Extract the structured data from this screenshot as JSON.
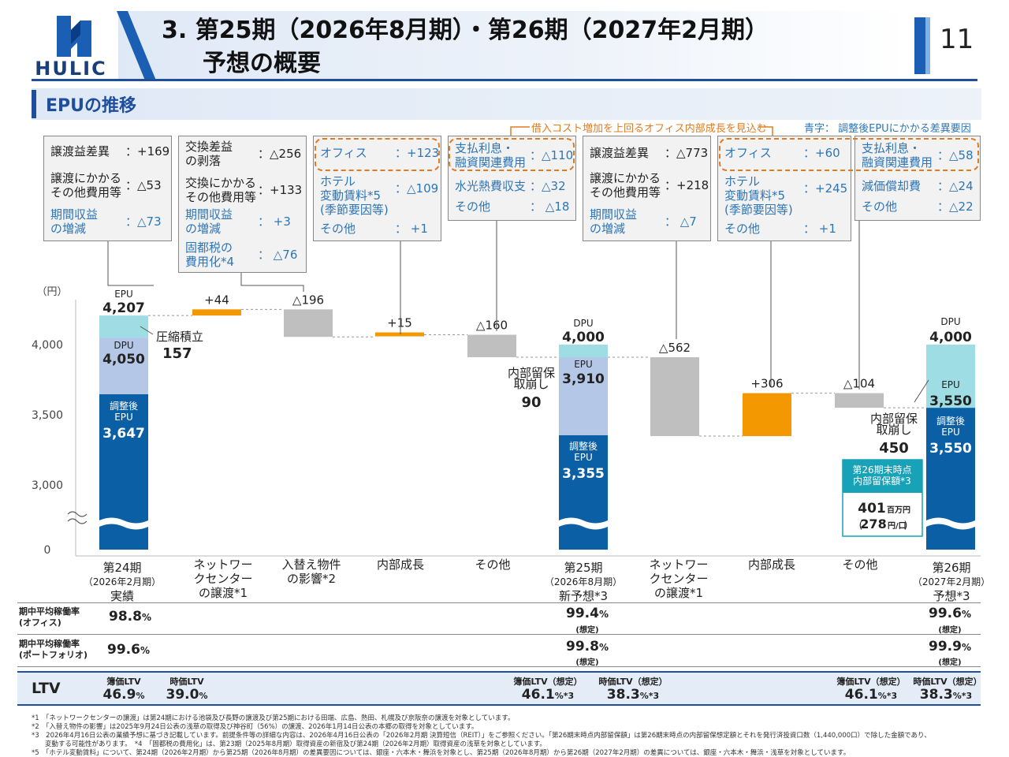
{
  "header": {
    "logo_text": "HULIC",
    "title_line1": "3. 第25期（2026年8月期）・第26期（2027年2月期）",
    "title_line2": "予想の概要",
    "page_number": "11"
  },
  "section": {
    "title": "EPUの推移"
  },
  "legend_note": "青字：  調整後EPUにかかる差異要因",
  "bracket_note": "借入コスト増加を上回るオフィス内部成長を見込む",
  "callouts": {
    "c1": [
      {
        "label": "譲渡益差異",
        "value": "：+169",
        "blue": false
      },
      {
        "label": "譲渡にかかる\nその他費用等",
        "value": "：△53",
        "blue": false
      },
      {
        "label": "期間収益\nの増減",
        "value": "：△73",
        "blue": true
      }
    ],
    "c2": [
      {
        "label": "交換差益\nの剥落",
        "value": "：△256",
        "blue": false
      },
      {
        "label": "交換にかかる\nその他費用等",
        "value": "：+133",
        "blue": false
      },
      {
        "label": "期間収益\nの増減",
        "value": "：  +3",
        "blue": true
      },
      {
        "label": "固都税の\n費用化*4",
        "value": "：  △76",
        "blue": true
      }
    ],
    "c3": [
      {
        "label": "オフィス",
        "value": "：+123",
        "blue": true
      },
      {
        "label": "ホテル\n変動賃料*5\n(季節要因等)",
        "value": "：△109",
        "blue": true
      },
      {
        "label": "その他",
        "value": "：  +1",
        "blue": true
      }
    ],
    "c4": [
      {
        "label": "支払利息・\n融資関連費用",
        "value": "：△110",
        "blue": true
      },
      {
        "label": "水光熱費収支",
        "value": "：△32",
        "blue": true
      },
      {
        "label": "その他",
        "value": "：  △18",
        "blue": true
      }
    ],
    "c5": [
      {
        "label": "譲渡益差異",
        "value": "：△773",
        "blue": false
      },
      {
        "label": "譲渡にかかる\nその他費用等",
        "value": "：+218",
        "blue": false
      },
      {
        "label": "期間収益\nの増減",
        "value": "：  △7",
        "blue": true
      }
    ],
    "c6": [
      {
        "label": "オフィス",
        "value": "：+60",
        "blue": true
      },
      {
        "label": "ホテル\n変動賃料*5\n(季節要因等)",
        "value": "：+245",
        "blue": true
      },
      {
        "label": "その他",
        "value": "：  +1",
        "blue": true
      }
    ],
    "c7": [
      {
        "label": "支払利息・\n融資関連費用",
        "value": "：△58",
        "blue": true
      },
      {
        "label": "減価償却費",
        "value": "：△24",
        "blue": true
      },
      {
        "label": "その他",
        "value": "：△22",
        "blue": true
      }
    ]
  },
  "chart_data": {
    "type": "bar",
    "subtype": "waterfall",
    "ylabel": "（円）",
    "yticks": [
      "0",
      "3,000",
      "3,500",
      "4,000"
    ],
    "axis_break": true,
    "categories": [
      "第24期\n（2026年2月期）\n実績",
      "ネットワー\nクセンター\nの譲渡*1",
      "入替え物件\nの影響*2",
      "内部成長",
      "その他",
      "第25期\n（2026年8月期）\n新予想*3",
      "ネットワー\nクセンター\nの譲渡*1",
      "内部成長",
      "その他",
      "第26期\n（2027年2月期）\n予想*3"
    ],
    "steps": [
      {
        "kind": "total",
        "segments": [
          {
            "name": "調整後EPU",
            "value": 3647
          },
          {
            "name": "DPU",
            "value": 4050
          },
          {
            "name": "EPU",
            "value": 4207
          }
        ]
      },
      {
        "kind": "delta",
        "from": 4207,
        "to": 4251,
        "label": "+44",
        "color": "#f39800"
      },
      {
        "kind": "delta",
        "from": 4251,
        "to": 4055,
        "label": "△196",
        "color": "#bfbfbf"
      },
      {
        "kind": "delta",
        "from": 4055,
        "to": 4070,
        "label": "+15",
        "color": "#f39800"
      },
      {
        "kind": "delta",
        "from": 4070,
        "to": 3910,
        "label": "△160",
        "color": "#bfbfbf"
      },
      {
        "kind": "total",
        "segments": [
          {
            "name": "調整後EPU",
            "value": 3355
          },
          {
            "name": "EPU",
            "value": 3910
          },
          {
            "name": "DPU",
            "value": 4000
          }
        ]
      },
      {
        "kind": "delta",
        "from": 3910,
        "to": 3348,
        "label": "△562",
        "color": "#bfbfbf"
      },
      {
        "kind": "delta",
        "from": 3348,
        "to": 3654,
        "label": "+306",
        "color": "#f39800"
      },
      {
        "kind": "delta",
        "from": 3654,
        "to": 3550,
        "label": "△104",
        "color": "#bfbfbf"
      },
      {
        "kind": "total",
        "segments": [
          {
            "name": "調整後EPU",
            "value": 3550
          },
          {
            "name": "EPU",
            "value": 3550
          },
          {
            "name": "DPU",
            "value": 4000
          }
        ]
      }
    ],
    "bar_labels": {
      "b1_epu_cap": "EPU",
      "b1_epu": "4,207",
      "b1_dpu_cap": "DPU",
      "b1_dpu": "4,050",
      "b1_adj_cap": "調整後\nEPU",
      "b1_adj": "3,647",
      "b6_dpu_cap": "DPU",
      "b6_dpu": "4,000",
      "b6_epu_cap": "EPU",
      "b6_epu": "3,910",
      "b6_adj_cap": "調整後\nEPU",
      "b6_adj": "3,355",
      "b10_dpu_cap": "DPU",
      "b10_dpu": "4,000",
      "b10_epu_cap": "EPU",
      "b10_epu": "3,550",
      "b10_adj_cap": "調整後\nEPU",
      "b10_adj": "3,550"
    },
    "annotations": {
      "reserve_label": "圧縮積立",
      "reserve_value": "157",
      "draw1_label": "内部留保\n取崩し",
      "draw1_value": "90",
      "draw2_label": "内部留保\n取崩し",
      "draw2_value": "450",
      "box_title": "第26期末時点\n内部留保額*3",
      "box_value": "401",
      "box_unit": "百万円",
      "box_sub_value": "278",
      "box_sub_unit": "円/口"
    },
    "colors": {
      "adjusted_epu": "#0b5fa5",
      "dpu": "#b4c7e7",
      "epu": "#9edde3",
      "increase": "#f39800",
      "decrease": "#bfbfbf"
    }
  },
  "occupancy": {
    "office_label": "期中平均稼働率\n(オフィス)",
    "portfolio_label": "期中平均稼働率\n(ポートフォリオ)",
    "office": [
      "98.8",
      "99.4",
      "99.6"
    ],
    "portfolio": [
      "99.6",
      "99.8",
      "99.9"
    ],
    "pct": "%",
    "assumed": "(想定)"
  },
  "ltv": {
    "label": "LTV",
    "p24_book_label": "簿価LTV",
    "p24_book": "46.9",
    "p24_mkt_label": "時価LTV",
    "p24_mkt": "39.0",
    "p25_book_label": "簿価LTV（想定）",
    "p25_book": "46.1",
    "p25_mkt_label": "時価LTV（想定）",
    "p25_mkt": "38.3",
    "p26_book_label": "簿価LTV（想定）",
    "p26_book": "46.1",
    "p26_mkt_label": "時価LTV（想定）",
    "p26_mkt": "38.3",
    "pct": "%",
    "star3": "*3"
  },
  "footnotes": [
    "*1　「ネットワークセンターの譲渡」は第24期における池袋及び長野の譲渡及び第25期における田端、広島、熱田、札幌及び京阪奈の譲渡を対象としています。",
    "*2　「入替え物件の影響」は2025年9月24日公表の浅草の取得及び神谷町（56%）の譲渡、2026年1月14日公表の本郷の取得を対象としています。",
    "*3　2026年4月16日公表の業績予想に基づき記載しています。前提条件等の詳細な内容は、2026年4月16日公表の「2026年2月期 決算短信（REIT）」をご参照ください。「第26期末時点内部留保額」は第26期末時点の内部留保想定額とそれを発行済投資口数（1,440,000口）で除した金額であり、",
    "　　変動する可能性があります。　*4　「固都税の費用化」は、第23期（2025年8月期）取得資産の新宿及び第24期（2026年2月期）取得資産の浅草を対象としています。",
    "*5　「ホテル変動賃料」について、第24期（2026年2月期）から第25期（2026年8月期）の差異要因については、銀座・六本木・舞浜を対象とし、第25期（2026年8月期）から第26期（2027年2月期）の差異については、銀座・六本木・舞浜・浅草を対象としています。"
  ]
}
